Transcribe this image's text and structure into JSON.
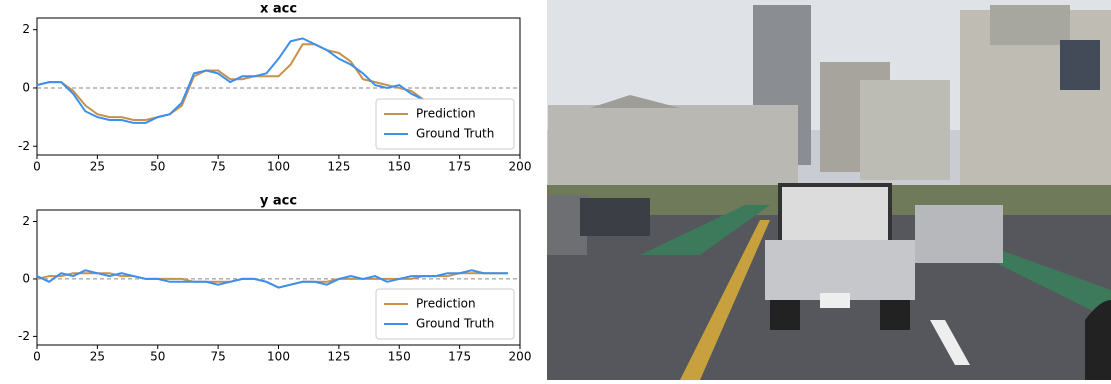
{
  "chart_data": [
    {
      "type": "line",
      "title": "x acc",
      "x": [
        0,
        5,
        10,
        15,
        20,
        25,
        30,
        35,
        40,
        45,
        50,
        55,
        60,
        65,
        70,
        75,
        80,
        85,
        90,
        95,
        100,
        105,
        110,
        115,
        120,
        125,
        130,
        135,
        140,
        145,
        150,
        155,
        160
      ],
      "series": [
        {
          "name": "Prediction",
          "color": "#c8914a",
          "values": [
            0.1,
            0.2,
            0.2,
            -0.1,
            -0.6,
            -0.9,
            -1.0,
            -1.0,
            -1.1,
            -1.1,
            -1.0,
            -0.9,
            -0.6,
            0.4,
            0.6,
            0.6,
            0.3,
            0.3,
            0.4,
            0.4,
            0.4,
            0.8,
            1.5,
            1.5,
            1.3,
            1.2,
            0.9,
            0.3,
            0.2,
            0.1,
            0.0,
            -0.1,
            -0.4
          ]
        },
        {
          "name": "Ground Truth",
          "color": "#3d8fef",
          "values": [
            0.1,
            0.2,
            0.2,
            -0.2,
            -0.8,
            -1.0,
            -1.1,
            -1.1,
            -1.2,
            -1.2,
            -1.0,
            -0.9,
            -0.5,
            0.5,
            0.6,
            0.5,
            0.2,
            0.4,
            0.4,
            0.5,
            1.0,
            1.6,
            1.7,
            1.5,
            1.3,
            1.0,
            0.8,
            0.5,
            0.1,
            0.0,
            0.1,
            -0.2,
            -0.4
          ]
        }
      ],
      "xlim": [
        0,
        200
      ],
      "xticks": [
        0,
        25,
        50,
        75,
        100,
        125,
        150,
        175,
        200
      ],
      "ylim": [
        -2.3,
        2.4
      ],
      "yticks": [
        -2,
        0,
        2
      ],
      "hline": 0,
      "legend": "lower right"
    },
    {
      "type": "line",
      "title": "y acc",
      "x": [
        0,
        5,
        10,
        15,
        20,
        25,
        30,
        35,
        40,
        45,
        50,
        55,
        60,
        65,
        70,
        75,
        80,
        85,
        90,
        95,
        100,
        105,
        110,
        115,
        120,
        125,
        130,
        135,
        140,
        145,
        150,
        155,
        160,
        165,
        170,
        175,
        180,
        185,
        190,
        195
      ],
      "series": [
        {
          "name": "Prediction",
          "color": "#c8914a",
          "values": [
            0.0,
            0.1,
            0.1,
            0.2,
            0.2,
            0.2,
            0.2,
            0.1,
            0.1,
            0.0,
            0.0,
            0.0,
            0.0,
            -0.1,
            -0.1,
            -0.1,
            -0.1,
            0.0,
            0.0,
            -0.1,
            -0.3,
            -0.2,
            -0.1,
            -0.1,
            -0.1,
            0.0,
            0.0,
            0.0,
            0.0,
            0.0,
            0.0,
            0.0,
            0.1,
            0.1,
            0.1,
            0.2,
            0.2,
            0.2,
            0.2,
            0.2
          ]
        },
        {
          "name": "Ground Truth",
          "color": "#3d8fef",
          "values": [
            0.1,
            -0.1,
            0.2,
            0.1,
            0.3,
            0.2,
            0.1,
            0.2,
            0.1,
            0.0,
            0.0,
            -0.1,
            -0.1,
            -0.1,
            -0.1,
            -0.2,
            -0.1,
            0.0,
            0.0,
            -0.1,
            -0.3,
            -0.2,
            -0.1,
            -0.1,
            -0.2,
            0.0,
            0.1,
            0.0,
            0.1,
            -0.1,
            0.0,
            0.1,
            0.1,
            0.1,
            0.2,
            0.2,
            0.3,
            0.2,
            0.2,
            0.2
          ]
        }
      ],
      "xlim": [
        0,
        200
      ],
      "xticks": [
        0,
        25,
        50,
        75,
        100,
        125,
        150,
        175,
        200
      ],
      "ylim": [
        -2.3,
        2.4
      ],
      "yticks": [
        -2,
        0,
        2
      ],
      "hline": 0,
      "legend": "lower right"
    }
  ]
}
